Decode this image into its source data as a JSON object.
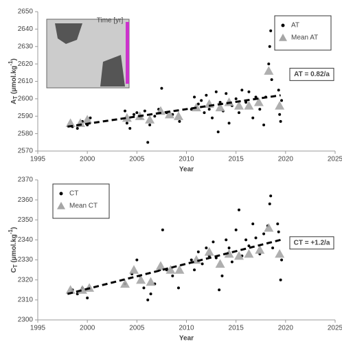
{
  "chart_data": [
    {
      "type": "scatter",
      "xlabel": "Year",
      "ylabel": {
        "main": "A",
        "sub": "T",
        "unit": " (µmol.kg",
        "sup": "-1",
        "end": ")"
      },
      "xlim": [
        1995,
        2025
      ],
      "xticks": [
        1995,
        2000,
        2005,
        2010,
        2015,
        2020,
        2025
      ],
      "ylim": [
        2570,
        2650
      ],
      "yticks": [
        2570,
        2580,
        2590,
        2600,
        2610,
        2620,
        2630,
        2640,
        2650
      ],
      "legend": "upper right",
      "annotation": "AT = 0.82/a",
      "inset_title": "Time [yr]",
      "series": [
        {
          "name": "AT",
          "marker": "circle",
          "color": "#000000",
          "x": [
            1998.5,
            1999,
            1999.5,
            2000,
            2000.3,
            2003.8,
            2004,
            2004.3,
            2004.7,
            2005,
            2005.4,
            2005.8,
            2006.1,
            2006.3,
            2006.8,
            2007.2,
            2007.5,
            2008,
            2008.6,
            2009.3,
            2010.5,
            2010.8,
            2011.2,
            2011.5,
            2011.8,
            2012,
            2012.3,
            2012.6,
            2013,
            2013.2,
            2013.4,
            2013.7,
            2014,
            2014.3,
            2014.6,
            2015,
            2015.3,
            2015.6,
            2016,
            2016.3,
            2016.7,
            2017,
            2017.4,
            2017.8,
            2018,
            2018.3,
            2018.4,
            2018.5,
            2018.6,
            2019.3,
            2019.4,
            2019.5,
            2019.6
          ],
          "y": [
            2584,
            2583,
            2587,
            2585,
            2589,
            2593,
            2586,
            2583,
            2591,
            2592,
            2589,
            2593,
            2575,
            2585,
            2590,
            2594,
            2606,
            2592,
            2591,
            2587,
            2594,
            2601,
            2597,
            2599,
            2592,
            2602,
            2594,
            2589,
            2604,
            2581,
            2598,
            2593,
            2603,
            2586,
            2596,
            2600,
            2592,
            2605,
            2598,
            2604,
            2589,
            2601,
            2594,
            2585,
            2601,
            2620,
            2630,
            2639,
            2611,
            2605,
            2591,
            2587,
            2599
          ]
        },
        {
          "name": "Mean AT",
          "marker": "triangle",
          "color": "#a6a6a6",
          "x": [
            1998.3,
            1999.3,
            2000,
            2004,
            2005.3,
            2006.3,
            2007.4,
            2008.3,
            2009.2,
            2011,
            2012.3,
            2013.4,
            2014.3,
            2015.3,
            2016.3,
            2017.3,
            2018.3,
            2019.4
          ],
          "y": [
            2586,
            2586,
            2588,
            2589,
            2590,
            2588,
            2593,
            2591,
            2590,
            2595,
            2597,
            2595,
            2598,
            2596,
            2596,
            2598,
            2616,
            2596
          ]
        },
        {
          "marker": "dashed-line",
          "color": "#000000",
          "x": [
            1998,
            2019.5
          ],
          "y": [
            2584,
            2602
          ]
        }
      ]
    },
    {
      "type": "scatter",
      "xlabel": "Year",
      "ylabel": {
        "main": "C",
        "sub": "T",
        "unit": " (µmol.kg",
        "sup": "-1",
        "end": ")"
      },
      "xlim": [
        1995,
        2025
      ],
      "xticks": [
        1995,
        2000,
        2005,
        2010,
        2015,
        2020,
        2025
      ],
      "ylim": [
        2300,
        2370
      ],
      "yticks": [
        2300,
        2310,
        2320,
        2330,
        2340,
        2350,
        2360,
        2370
      ],
      "legend": "upper left",
      "annotation": "CT = +1.2/a",
      "series": [
        {
          "name": "CT",
          "marker": "circle",
          "color": "#000000",
          "x": [
            1998.5,
            1999,
            1999.5,
            2000,
            2003.8,
            2004.5,
            2005,
            2005.3,
            2005.7,
            2006.1,
            2006.4,
            2006.8,
            2007.3,
            2007.6,
            2008,
            2008.6,
            2009.2,
            2010.5,
            2010.8,
            2011.2,
            2011.6,
            2012,
            2012.3,
            2012.7,
            2013,
            2013.3,
            2013.6,
            2014,
            2014.3,
            2014.6,
            2015,
            2015.3,
            2015.6,
            2016,
            2016.3,
            2016.7,
            2017,
            2017.4,
            2017.8,
            2018.2,
            2018.4,
            2018.5,
            2018.7,
            2019.3,
            2019.5,
            2019.6,
            2019.2
          ],
          "y": [
            2315,
            2313,
            2316,
            2311,
            2318,
            2323,
            2330,
            2322,
            2316,
            2310,
            2313,
            2318,
            2325,
            2345,
            2325,
            2322,
            2316,
            2330,
            2325,
            2334,
            2328,
            2336,
            2332,
            2339,
            2331,
            2315,
            2322,
            2340,
            2336,
            2329,
            2345,
            2355,
            2332,
            2340,
            2337,
            2348,
            2341,
            2333,
            2343,
            2347,
            2358,
            2362,
            2336,
            2344,
            2320,
            2330,
            2348
          ]
        },
        {
          "name": "Mean CT",
          "marker": "triangle",
          "color": "#a6a6a6",
          "x": [
            1998.3,
            1999.5,
            2000.2,
            2003.8,
            2004.7,
            2005.4,
            2006.4,
            2007.4,
            2008.4,
            2009.3,
            2011,
            2012.3,
            2013.4,
            2014.3,
            2015.3,
            2016.3,
            2017.4,
            2018.3,
            2019.4
          ],
          "y": [
            2315,
            2315,
            2316,
            2318,
            2325,
            2320,
            2319,
            2327,
            2325,
            2325,
            2330,
            2334,
            2328,
            2333,
            2332,
            2333,
            2335,
            2346,
            2333
          ]
        },
        {
          "marker": "dashed-line",
          "color": "#000000",
          "x": [
            1998,
            2019.5
          ],
          "y": [
            2313,
            2340
          ]
        }
      ]
    }
  ]
}
